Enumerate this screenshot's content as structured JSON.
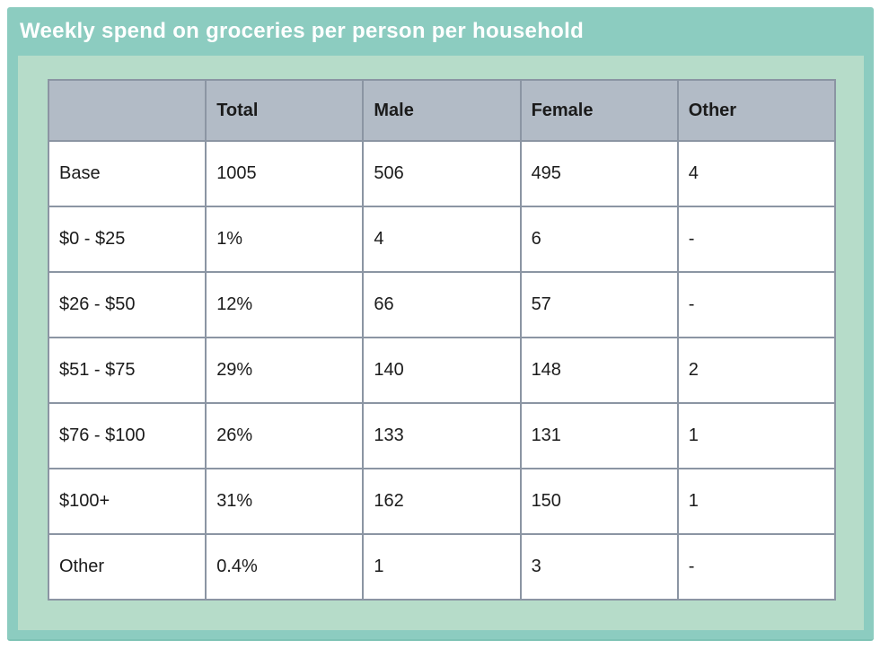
{
  "header": {
    "title": "Weekly spend on groceries per person per household"
  },
  "colors": {
    "frame_teal": "#8cccc0",
    "panel_mint": "#b6dcc9",
    "header_row_gray": "#b2bbc6",
    "border_gray": "#8b95a3",
    "title_text": "#ffffff",
    "cell_bg": "#ffffff",
    "cell_text": "#1b1b1b"
  },
  "table": {
    "columns": [
      "",
      "Total",
      "Male",
      "Female",
      "Other"
    ],
    "rows": [
      [
        "Base",
        "1005",
        "506",
        "495",
        "4"
      ],
      [
        "$0 - $25",
        "1%",
        "4",
        "6",
        "-"
      ],
      [
        "$26 - $50",
        "12%",
        "66",
        "57",
        "-"
      ],
      [
        "$51 - $75",
        "29%",
        "140",
        "148",
        "2"
      ],
      [
        "$76 - $100",
        "26%",
        "133",
        "131",
        "1"
      ],
      [
        "$100+",
        "31%",
        "162",
        "150",
        "1"
      ],
      [
        "Other",
        "0.4%",
        "1",
        "3",
        "-"
      ]
    ]
  },
  "chart_data": {
    "type": "table",
    "title": "Weekly spend on groceries per person per household",
    "categories": [
      "Base",
      "$0 - $25",
      "$26 - $50",
      "$51 - $75",
      "$76 - $100",
      "$100+",
      "Other"
    ],
    "series": [
      {
        "name": "Total",
        "values": [
          "1005",
          "1%",
          "12%",
          "29%",
          "26%",
          "31%",
          "0.4%"
        ]
      },
      {
        "name": "Male",
        "values": [
          "506",
          "4",
          "66",
          "140",
          "133",
          "162",
          "1"
        ]
      },
      {
        "name": "Female",
        "values": [
          "495",
          "6",
          "57",
          "148",
          "131",
          "150",
          "3"
        ]
      },
      {
        "name": "Other",
        "values": [
          "4",
          "-",
          "-",
          "2",
          "1",
          "1",
          "-"
        ]
      }
    ],
    "layout": {
      "header_fill": "#b2bbc6",
      "grid": true,
      "legend_position": "none"
    }
  }
}
